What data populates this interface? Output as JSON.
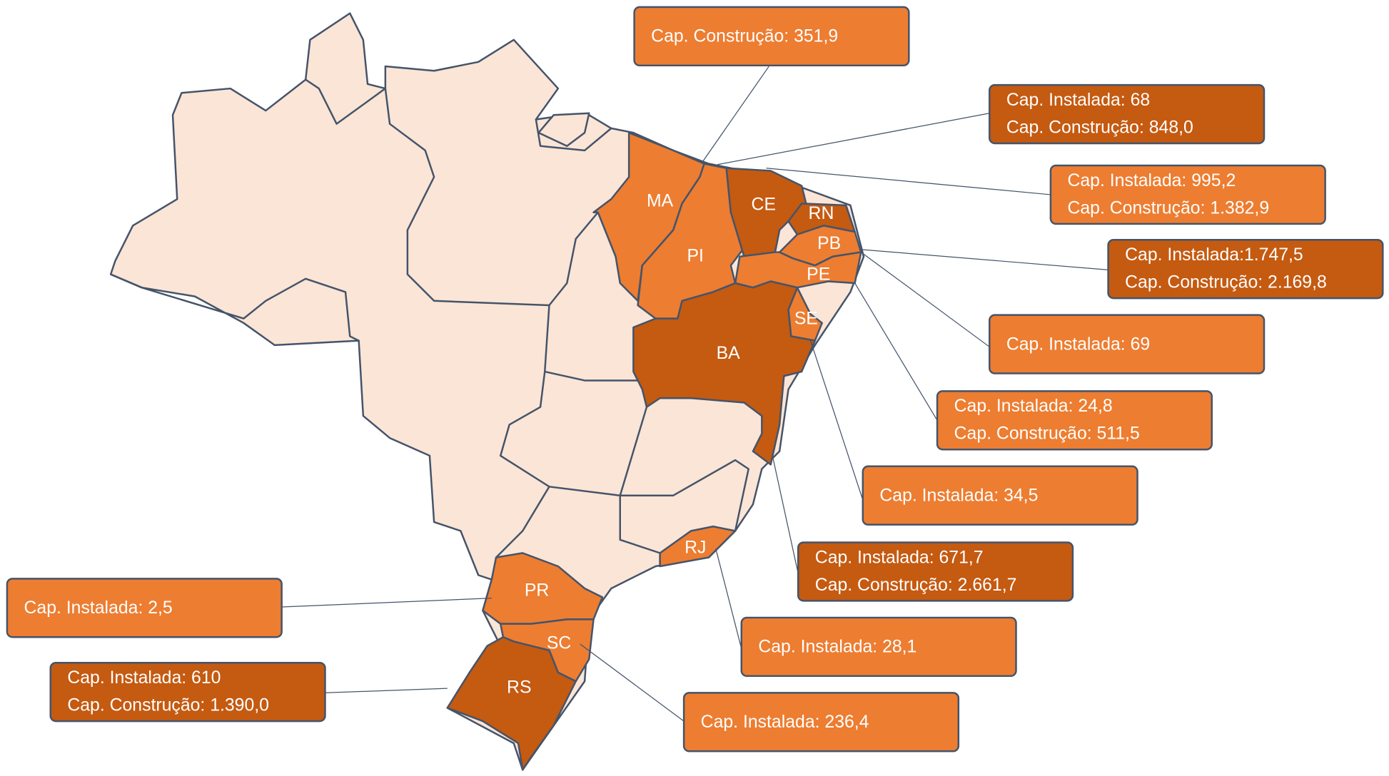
{
  "states": [
    {
      "label": "MA"
    },
    {
      "label": "PI"
    },
    {
      "label": "CE"
    },
    {
      "label": "RN"
    },
    {
      "label": "PB"
    },
    {
      "label": "PE"
    },
    {
      "label": "SE"
    },
    {
      "label": "BA"
    },
    {
      "label": "RJ"
    },
    {
      "label": "PR"
    },
    {
      "label": "SC"
    },
    {
      "label": "RS"
    }
  ],
  "callouts": [
    {
      "lines": [
        "Cap. Construção: 351,9"
      ]
    },
    {
      "lines": [
        "Cap. Instalada: 68",
        "Cap. Construção: 848,0"
      ]
    },
    {
      "lines": [
        "Cap. Instalada: 995,2",
        "Cap. Construção: 1.382,9"
      ]
    },
    {
      "lines": [
        "Cap. Instalada:1.747,5",
        "Cap. Construção: 2.169,8"
      ]
    },
    {
      "lines": [
        "Cap. Instalada: 69"
      ]
    },
    {
      "lines": [
        "Cap. Instalada: 24,8",
        "Cap. Construção: 511,5"
      ]
    },
    {
      "lines": [
        "Cap. Instalada: 34,5"
      ]
    },
    {
      "lines": [
        "Cap. Instalada: 671,7",
        "Cap. Construção: 2.661,7"
      ]
    },
    {
      "lines": [
        "Cap. Instalada: 28,1"
      ]
    },
    {
      "lines": [
        "Cap. Instalada: 236,4"
      ]
    },
    {
      "lines": [
        "Cap. Instalada: 2,5"
      ]
    },
    {
      "lines": [
        "Cap. Instalada: 610",
        "Cap. Construção: 1.390,0"
      ]
    }
  ]
}
